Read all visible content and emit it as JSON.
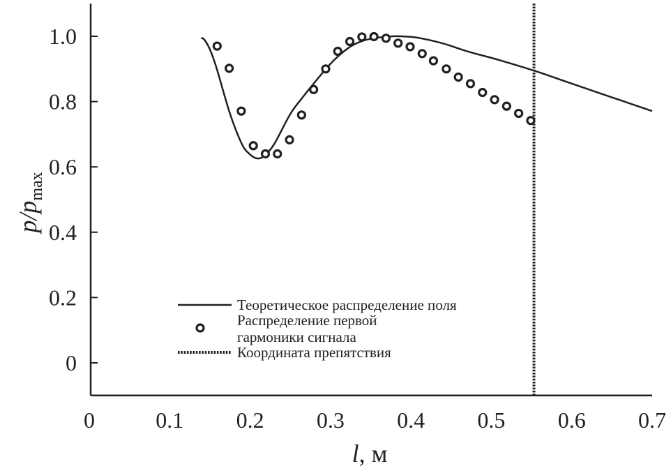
{
  "chart_data": {
    "type": "line",
    "title": "",
    "xlabel": "l, м",
    "xlabel_var": "l",
    "xlabel_unit": ", м",
    "ylabel": "p/p_max",
    "ylabel_main": "p/p",
    "ylabel_sub": "max",
    "xlim": [
      0,
      0.7
    ],
    "ylim": [
      -0.1,
      1.1
    ],
    "grid": false,
    "x_ticks": [
      0,
      0.1,
      0.2,
      0.3,
      0.4,
      0.5,
      0.6,
      0.7
    ],
    "x_tick_labels": [
      "0",
      "0.1",
      "0.2",
      "0.3",
      "0.4",
      "0.5",
      "0.6",
      "0.7"
    ],
    "y_ticks": [
      0,
      0.2,
      0.4,
      0.6,
      0.8,
      1.0
    ],
    "y_tick_labels": [
      "0",
      "0.2",
      "0.4",
      "0.6",
      "0.8",
      "1.0"
    ],
    "legend_position": "bottom-center",
    "series": [
      {
        "name": "Теоретическое распределение поля",
        "style": "solid-line",
        "x": [
          0.139,
          0.143,
          0.15,
          0.158,
          0.175,
          0.19,
          0.2,
          0.207,
          0.213,
          0.219,
          0.23,
          0.25,
          0.265,
          0.279,
          0.297,
          0.31,
          0.325,
          0.34,
          0.354,
          0.377,
          0.395,
          0.412,
          0.44,
          0.47,
          0.51,
          0.554,
          0.6,
          0.65,
          0.7
        ],
        "y": [
          0.995,
          0.99,
          0.96,
          0.905,
          0.763,
          0.669,
          0.638,
          0.627,
          0.627,
          0.637,
          0.67,
          0.762,
          0.812,
          0.855,
          0.908,
          0.94,
          0.969,
          0.986,
          0.994,
          1.0,
          0.999,
          0.994,
          0.978,
          0.954,
          0.927,
          0.894,
          0.855,
          0.813,
          0.771
        ]
      },
      {
        "name_line1": "Распределение первой",
        "name_line2": "гармоники сигнала",
        "style": "circle-markers",
        "x": [
          0.159,
          0.174,
          0.189,
          0.204,
          0.219,
          0.234,
          0.249,
          0.264,
          0.279,
          0.294,
          0.309,
          0.324,
          0.339,
          0.354,
          0.369,
          0.384,
          0.399,
          0.414,
          0.428,
          0.444,
          0.459,
          0.474,
          0.489,
          0.504,
          0.519,
          0.534,
          0.549
        ],
        "y": [
          0.97,
          0.902,
          0.771,
          0.665,
          0.64,
          0.64,
          0.683,
          0.759,
          0.837,
          0.9,
          0.954,
          0.984,
          0.998,
          0.999,
          0.994,
          0.979,
          0.968,
          0.947,
          0.925,
          0.9,
          0.875,
          0.855,
          0.828,
          0.806,
          0.786,
          0.764,
          0.742
        ]
      },
      {
        "name": "Координата препятствия",
        "style": "dotted-vertical-line",
        "x": 0.553
      }
    ]
  }
}
